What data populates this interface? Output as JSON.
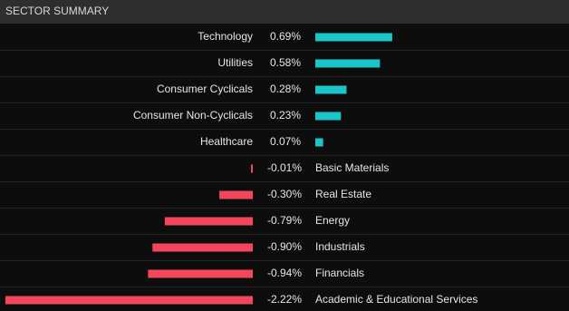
{
  "chart_data": {
    "type": "diverging-bar",
    "title": "SECTOR SUMMARY",
    "categories": [
      "Technology",
      "Utilities",
      "Consumer Cyclicals",
      "Consumer Non-Cyclicals",
      "Healthcare",
      "Basic Materials",
      "Real Estate",
      "Energy",
      "Industrials",
      "Financials",
      "Academic & Educational Services"
    ],
    "values": [
      0.69,
      0.58,
      0.28,
      0.23,
      0.07,
      -0.01,
      -0.3,
      -0.79,
      -0.9,
      -0.94,
      -2.22
    ],
    "value_labels": [
      "0.69%",
      "0.58%",
      "0.28%",
      "0.23%",
      "0.07%",
      "-0.01%",
      "-0.30%",
      "-0.79%",
      "-0.90%",
      "-0.94%",
      "-2.22%"
    ],
    "positive_color": "#1cc6c8",
    "negative_color": "#f2475b"
  }
}
